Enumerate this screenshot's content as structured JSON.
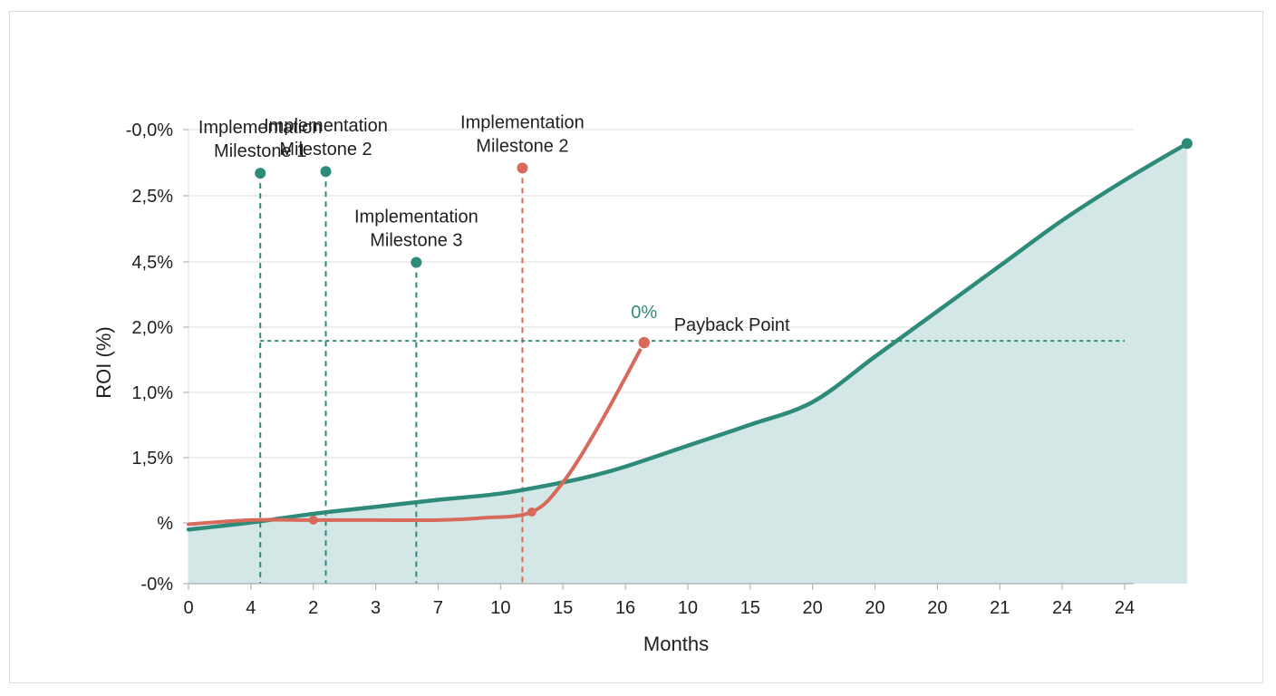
{
  "colors": {
    "primary_line": "#2e8b7a",
    "primary_fill": "#d3e7e6",
    "secondary_line": "#d76a5a",
    "gridline": "#e3e3e3",
    "axis": "#b5b5b5"
  },
  "chart_data": {
    "type": "line",
    "xlabel": "Months",
    "ylabel": "ROI (%)",
    "x_tick_labels": [
      "0",
      "4",
      "2",
      "3",
      "7",
      "10",
      "15",
      "16",
      "10",
      "15",
      "20",
      "20",
      "20",
      "21",
      "24",
      "24"
    ],
    "y_tick_labels": [
      "-0,0%",
      "2,5%",
      "4,5%",
      "2,0%",
      "1,0%",
      "1,5%",
      "%",
      "-0%"
    ],
    "grid": true,
    "series": [
      {
        "name": "",
        "color": "#2e8b7a",
        "filled": true,
        "points": [
          [
            0,
            -0.45
          ],
          [
            1,
            -0.25
          ],
          [
            2,
            0.0
          ],
          [
            3,
            0.2
          ],
          [
            4,
            0.4
          ],
          [
            5,
            0.58
          ],
          [
            6,
            0.9
          ],
          [
            6.5,
            1.1
          ],
          [
            7,
            1.35
          ],
          [
            8,
            1.95
          ],
          [
            9,
            2.55
          ],
          [
            10,
            3.2
          ],
          [
            11,
            4.5
          ],
          [
            12,
            5.8
          ],
          [
            13,
            7.1
          ],
          [
            14,
            8.4
          ],
          [
            15,
            9.55
          ],
          [
            16,
            10.6
          ]
        ]
      },
      {
        "name": "",
        "color": "#d76a5a",
        "filled": false,
        "points": [
          [
            0,
            -0.3
          ],
          [
            1,
            -0.18
          ],
          [
            2,
            -0.18
          ],
          [
            3,
            -0.18
          ],
          [
            4,
            -0.18
          ],
          [
            4.7,
            -0.12
          ],
          [
            5.5,
            0.05
          ],
          [
            6,
            0.9
          ],
          [
            6.6,
            2.6
          ],
          [
            7.3,
            4.9
          ]
        ]
      }
    ],
    "milestones": [
      {
        "label_line1": "Implementation",
        "label_line2": "Milestone 1",
        "x": 1.15,
        "y": 9.75,
        "color": "#2e8b7a"
      },
      {
        "label_line1": "Implementation",
        "label_line2": "Milestone 2",
        "x": 2.2,
        "y": 9.8,
        "color": "#2e8b7a"
      },
      {
        "label_line1": "Implementation",
        "label_line2": "Milestone 3",
        "x": 3.65,
        "y": 7.2,
        "color": "#2e8b7a"
      },
      {
        "label_line1": "Implementation",
        "label_line2": "Milestone 2",
        "x": 5.35,
        "y": 9.9,
        "color": "#d76a5a"
      }
    ],
    "payback": {
      "label": "Payback Point",
      "value_label": "0%",
      "x": 7.3,
      "y": 4.9
    },
    "ylim": [
      -2,
      11
    ],
    "xlim": [
      0,
      15
    ]
  }
}
